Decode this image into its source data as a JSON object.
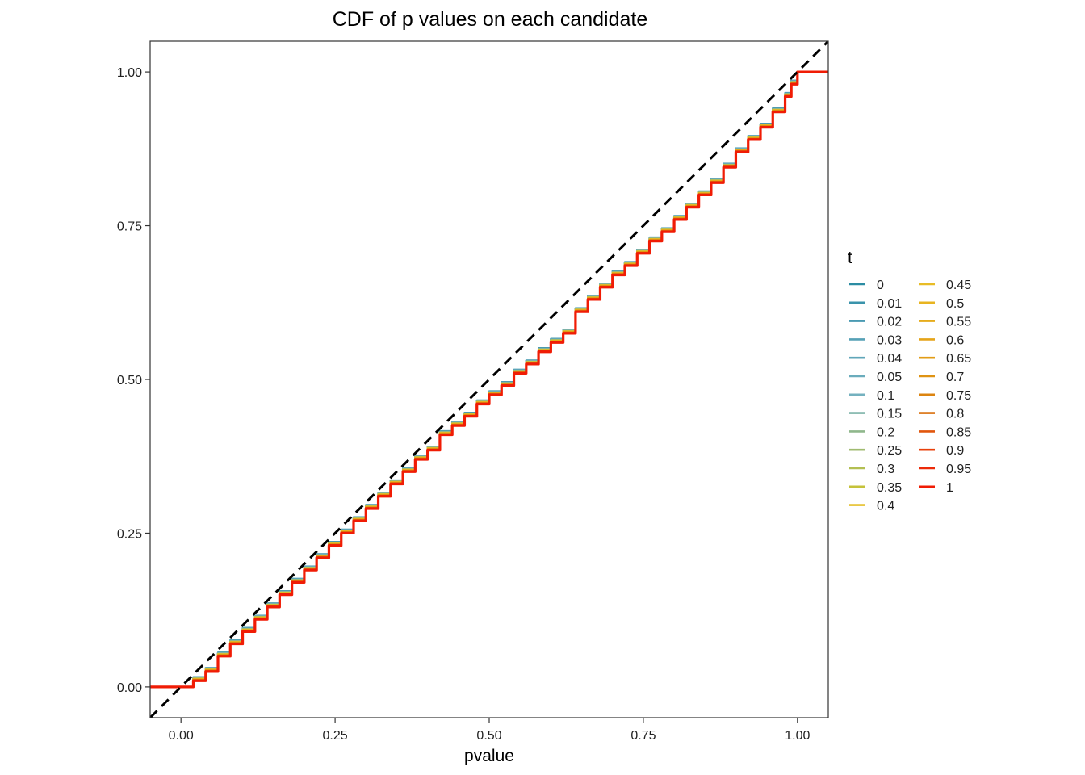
{
  "chart_data": {
    "type": "line",
    "title": "CDF of p values on each candidate",
    "xlabel": "pvalue",
    "ylabel": "",
    "xlim": [
      -0.05,
      1.05
    ],
    "ylim": [
      -0.05,
      1.05
    ],
    "x_ticks": [
      0,
      0.25,
      0.5,
      0.75,
      1
    ],
    "x_tick_labels": [
      "0.00",
      "0.25",
      "0.50",
      "0.75",
      "1.00"
    ],
    "y_ticks": [
      0,
      0.25,
      0.5,
      0.75,
      1
    ],
    "y_tick_labels": [
      "0.00",
      "0.25",
      "0.50",
      "0.75",
      "1.00"
    ],
    "grid": false,
    "legend": {
      "title": "t",
      "position": "right",
      "columns": 2
    },
    "reference_line": {
      "style": "dashed",
      "color": "#000000",
      "slope": 1,
      "intercept": 0
    },
    "ecdf_curve": {
      "x": [
        0.0,
        0.02,
        0.04,
        0.06,
        0.08,
        0.1,
        0.12,
        0.14,
        0.16,
        0.18,
        0.2,
        0.22,
        0.24,
        0.26,
        0.28,
        0.3,
        0.32,
        0.34,
        0.36,
        0.38,
        0.4,
        0.42,
        0.44,
        0.46,
        0.48,
        0.5,
        0.52,
        0.54,
        0.56,
        0.58,
        0.6,
        0.62,
        0.64,
        0.66,
        0.68,
        0.7,
        0.72,
        0.74,
        0.76,
        0.78,
        0.8,
        0.82,
        0.84,
        0.86,
        0.88,
        0.9,
        0.92,
        0.94,
        0.96,
        0.98,
        0.99,
        1.0
      ],
      "y": [
        0.0,
        0.01,
        0.025,
        0.05,
        0.07,
        0.09,
        0.11,
        0.13,
        0.15,
        0.17,
        0.19,
        0.21,
        0.23,
        0.25,
        0.27,
        0.29,
        0.31,
        0.33,
        0.35,
        0.37,
        0.385,
        0.41,
        0.425,
        0.44,
        0.46,
        0.475,
        0.49,
        0.51,
        0.525,
        0.545,
        0.56,
        0.575,
        0.61,
        0.63,
        0.65,
        0.67,
        0.685,
        0.705,
        0.725,
        0.74,
        0.76,
        0.78,
        0.8,
        0.82,
        0.845,
        0.87,
        0.89,
        0.91,
        0.935,
        0.96,
        0.98,
        1.0
      ]
    },
    "series": [
      {
        "name": "0",
        "color": "#2b8ca3"
      },
      {
        "name": "0.01",
        "color": "#3a93ab"
      },
      {
        "name": "0.02",
        "color": "#4a9ab2"
      },
      {
        "name": "0.03",
        "color": "#56a1b6"
      },
      {
        "name": "0.04",
        "color": "#60a6b9"
      },
      {
        "name": "0.05",
        "color": "#6aacbc"
      },
      {
        "name": "0.1",
        "color": "#74b1bf"
      },
      {
        "name": "0.15",
        "color": "#7fb4aa"
      },
      {
        "name": "0.2",
        "color": "#8fb78c"
      },
      {
        "name": "0.25",
        "color": "#a0bb70"
      },
      {
        "name": "0.3",
        "color": "#b3bf52"
      },
      {
        "name": "0.35",
        "color": "#c5c23a"
      },
      {
        "name": "0.4",
        "color": "#e6c12d"
      },
      {
        "name": "0.45",
        "color": "#e8bc26"
      },
      {
        "name": "0.5",
        "color": "#e8b420"
      },
      {
        "name": "0.55",
        "color": "#e6ac1c"
      },
      {
        "name": "0.6",
        "color": "#e5a419"
      },
      {
        "name": "0.65",
        "color": "#e29c16"
      },
      {
        "name": "0.7",
        "color": "#df9313"
      },
      {
        "name": "0.75",
        "color": "#dc8410"
      },
      {
        "name": "0.8",
        "color": "#da700e"
      },
      {
        "name": "0.85",
        "color": "#e1560d"
      },
      {
        "name": "0.9",
        "color": "#e8400b"
      },
      {
        "name": "0.95",
        "color": "#ec2a09"
      },
      {
        "name": "1",
        "color": "#f01c05"
      }
    ]
  }
}
